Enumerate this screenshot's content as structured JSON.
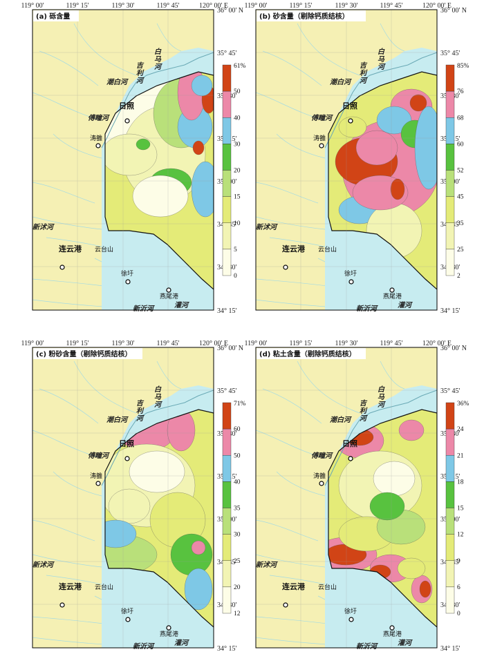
{
  "lon_ticks": [
    "119° 00'",
    "119° 15'",
    "119° 30'",
    "119° 45'",
    "120° 00' E"
  ],
  "lat_ticks": [
    "36° 00' N",
    "35° 45'",
    "35° 30'",
    "35° 15'",
    "35° 00'",
    "34° 45'",
    "34° 30'",
    "34° 15'"
  ],
  "places": {
    "rizhao": "日照",
    "lianyungang": "连云港",
    "xuxu": "徐圩",
    "yanweigang": "燕尾港",
    "taoluo": "涛雒"
  },
  "rivers": {
    "chaobai": "潮白河",
    "jili": "吉利河",
    "baima": "白马河",
    "fuzhi": "傅疃河",
    "xinshu": "新沭河",
    "xinyi": "新沂河",
    "guan": "灌河",
    "yuntai": "云台山"
  },
  "panels": [
    {
      "id": "a",
      "title": "(a) 砾含量",
      "unit_max": "61%",
      "levels": [
        "50",
        "40",
        "30",
        "20",
        "15",
        "10",
        "5",
        "0"
      ]
    },
    {
      "id": "b",
      "title": "(b) 砂含量（剔除钙质结核）",
      "unit_max": "85%",
      "levels": [
        "76",
        "68",
        "60",
        "52",
        "45",
        "35",
        "25",
        "2"
      ]
    },
    {
      "id": "c",
      "title": "(c) 粉砂含量（剔除钙质结核）",
      "unit_max": "71%",
      "levels": [
        "60",
        "50",
        "40",
        "35",
        "30",
        "25",
        "20",
        "12"
      ]
    },
    {
      "id": "d",
      "title": "(d) 粘土含量（剔除钙质结核）",
      "unit_max": "36%",
      "levels": [
        "24",
        "21",
        "18",
        "15",
        "12",
        "9",
        "6",
        "0"
      ]
    }
  ],
  "colors": {
    "land": "#f5f0b4",
    "sea": "#c7ecf0",
    "c0": "#fdfde7",
    "c1": "#f2f4b4",
    "c2": "#e4eb78",
    "c3": "#b9e07a",
    "c4": "#58c23f",
    "c5": "#7ec8e6",
    "c6": "#ec88a8",
    "c7": "#d14416"
  }
}
